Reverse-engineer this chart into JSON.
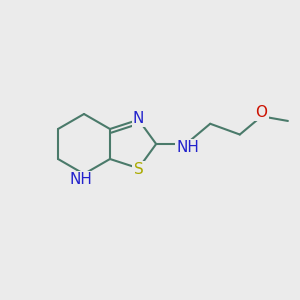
{
  "background_color": "#ebebeb",
  "bond_color": "#4a7a6a",
  "bond_width": 1.5,
  "atom_colors": {
    "N": "#2222cc",
    "S": "#aaaa00",
    "O": "#cc1100"
  },
  "font_size": 11
}
